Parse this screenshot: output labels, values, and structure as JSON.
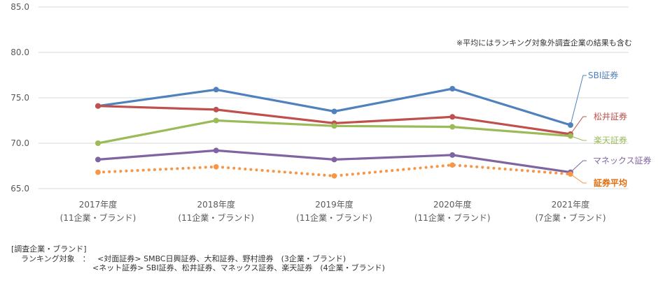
{
  "chart_data": {
    "type": "line",
    "categories": [
      [
        "2017年度",
        "(11企業・ブランド)"
      ],
      [
        "2018年度",
        "(11企業・ブランド)"
      ],
      [
        "2019年度",
        "(11企業・ブランド)"
      ],
      [
        "2020年度",
        "(11企業・ブランド)"
      ],
      [
        "2021年度",
        "(7企業・ブランド)"
      ]
    ],
    "ylim": [
      65,
      85
    ],
    "yticks": [
      "65.0",
      "70.0",
      "75.0",
      "80.0",
      "85.0"
    ],
    "grid": true,
    "series": [
      {
        "name": "SBI証券",
        "color": "#4f81bd",
        "values": [
          74.1,
          75.9,
          73.5,
          76.0,
          72.0
        ],
        "dotted": false
      },
      {
        "name": "松井証券",
        "color": "#c0504d",
        "values": [
          74.1,
          73.7,
          72.2,
          72.9,
          71.0
        ],
        "dotted": false
      },
      {
        "name": "楽天証券",
        "color": "#9bbb59",
        "values": [
          70.0,
          72.5,
          71.9,
          71.8,
          70.8
        ],
        "dotted": false
      },
      {
        "name": "マネックス証券",
        "color": "#8064a2",
        "values": [
          68.2,
          69.2,
          68.2,
          68.7,
          66.8
        ],
        "dotted": false
      },
      {
        "name": "証券平均",
        "color": "#f79646",
        "values": [
          66.8,
          67.4,
          66.4,
          67.6,
          66.6
        ],
        "dotted": true
      }
    ],
    "note": "※平均にはランキング対象外調査企業の結果も含む"
  },
  "footer": {
    "heading": "[調査企業・ブランド]",
    "label": "ランキング対象　：",
    "line1": "<対面証券> SMBC日興証券、大和証券、野村證券　(3企業・ブランド)",
    "line2": "<ネット証券> SBI証券、松井証券、マネックス証券、楽天証券　(4企業・ブランド)"
  }
}
